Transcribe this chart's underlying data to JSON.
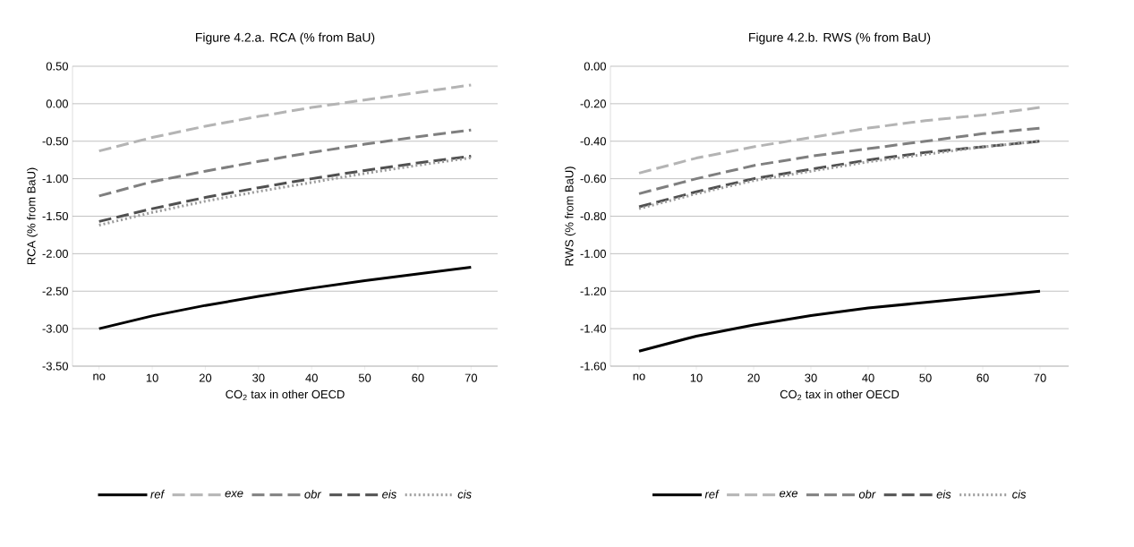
{
  "chart_data": [
    {
      "type": "line",
      "title": "Figure 4.2.a.  RCA (% from BaU)",
      "xlabel": "CO$_{2}$ tax in other OECD",
      "ylabel": "RCA  (% from BaU)",
      "categories": [
        "no",
        "10",
        "20",
        "30",
        "40",
        "50",
        "60",
        "70"
      ],
      "ylim": [
        -3.5,
        0.5
      ],
      "yticks": [
        {
          "value": -3.5,
          "label": "-3.50"
        },
        {
          "value": -3,
          "label": "-3.00"
        },
        {
          "value": -2.5,
          "label": "-2.50"
        },
        {
          "value": -2,
          "label": "-2.00"
        },
        {
          "value": -1.5,
          "label": "-1.50"
        },
        {
          "value": -1,
          "label": "-1.00"
        },
        {
          "value": -0.5,
          "label": "-0.50"
        },
        {
          "value": 0,
          "label": "0.00"
        },
        {
          "value": 0.5,
          "label": "0.50"
        }
      ],
      "grid": "y",
      "legend": "bottom",
      "series": [
        {
          "name": "ref",
          "color": "#000000",
          "line_style": "solid",
          "values": [
            -3.0,
            -2.83,
            -2.69,
            -2.57,
            -2.46,
            -2.36,
            -2.27,
            -2.18
          ]
        },
        {
          "name": "exe",
          "color": "#b4b4b4",
          "line_style": "dashed",
          "values": [
            -0.63,
            -0.45,
            -0.3,
            -0.17,
            -0.05,
            0.05,
            0.15,
            0.25
          ]
        },
        {
          "name": "obr",
          "color": "#7f7f7f",
          "line_style": "dashed",
          "values": [
            -1.23,
            -1.04,
            -0.9,
            -0.77,
            -0.65,
            -0.54,
            -0.44,
            -0.35
          ]
        },
        {
          "name": "eis",
          "color": "#505050",
          "line_style": "dashed",
          "values": [
            -1.57,
            -1.4,
            -1.25,
            -1.12,
            -1.0,
            -0.89,
            -0.79,
            -0.7
          ]
        },
        {
          "name": "cis",
          "color": "#9a9a9a",
          "line_style": "dotted",
          "values": [
            -1.62,
            -1.45,
            -1.3,
            -1.17,
            -1.05,
            -0.93,
            -0.82,
            -0.72
          ]
        }
      ]
    },
    {
      "type": "line",
      "title": "Figure 4.2.b.  RWS (% from BaU)",
      "xlabel": "CO$_{2}$ tax in other OECD",
      "ylabel": "RWS (% from BaU)",
      "categories": [
        "no",
        "10",
        "20",
        "30",
        "40",
        "50",
        "60",
        "70"
      ],
      "ylim": [
        -1.6,
        0
      ],
      "yticks": [
        {
          "value": -1.6,
          "label": "-1.60"
        },
        {
          "value": -1.4,
          "label": "-1.40"
        },
        {
          "value": -1.2,
          "label": "-1.20"
        },
        {
          "value": -1,
          "label": "-1.00"
        },
        {
          "value": -0.8,
          "label": "-0.80"
        },
        {
          "value": -0.6,
          "label": "-0.60"
        },
        {
          "value": -0.4,
          "label": "-0.40"
        },
        {
          "value": -0.2,
          "label": "-0.20"
        },
        {
          "value": 0,
          "label": "0.00"
        }
      ],
      "grid": "y",
      "legend": "bottom",
      "series": [
        {
          "name": "ref",
          "color": "#000000",
          "line_style": "solid",
          "values": [
            -1.52,
            -1.44,
            -1.38,
            -1.33,
            -1.29,
            -1.26,
            -1.23,
            -1.2
          ]
        },
        {
          "name": "exe",
          "color": "#b4b4b4",
          "line_style": "dashed",
          "values": [
            -0.57,
            -0.49,
            -0.43,
            -0.38,
            -0.33,
            -0.29,
            -0.26,
            -0.22
          ]
        },
        {
          "name": "obr",
          "color": "#7f7f7f",
          "line_style": "dashed",
          "values": [
            -0.68,
            -0.6,
            -0.53,
            -0.48,
            -0.44,
            -0.4,
            -0.36,
            -0.33
          ]
        },
        {
          "name": "eis",
          "color": "#505050",
          "line_style": "dashed",
          "values": [
            -0.75,
            -0.67,
            -0.6,
            -0.55,
            -0.5,
            -0.46,
            -0.43,
            -0.4
          ]
        },
        {
          "name": "cis",
          "color": "#9a9a9a",
          "line_style": "dotted",
          "values": [
            -0.76,
            -0.68,
            -0.61,
            -0.56,
            -0.51,
            -0.47,
            -0.43,
            -0.4
          ]
        }
      ]
    }
  ]
}
